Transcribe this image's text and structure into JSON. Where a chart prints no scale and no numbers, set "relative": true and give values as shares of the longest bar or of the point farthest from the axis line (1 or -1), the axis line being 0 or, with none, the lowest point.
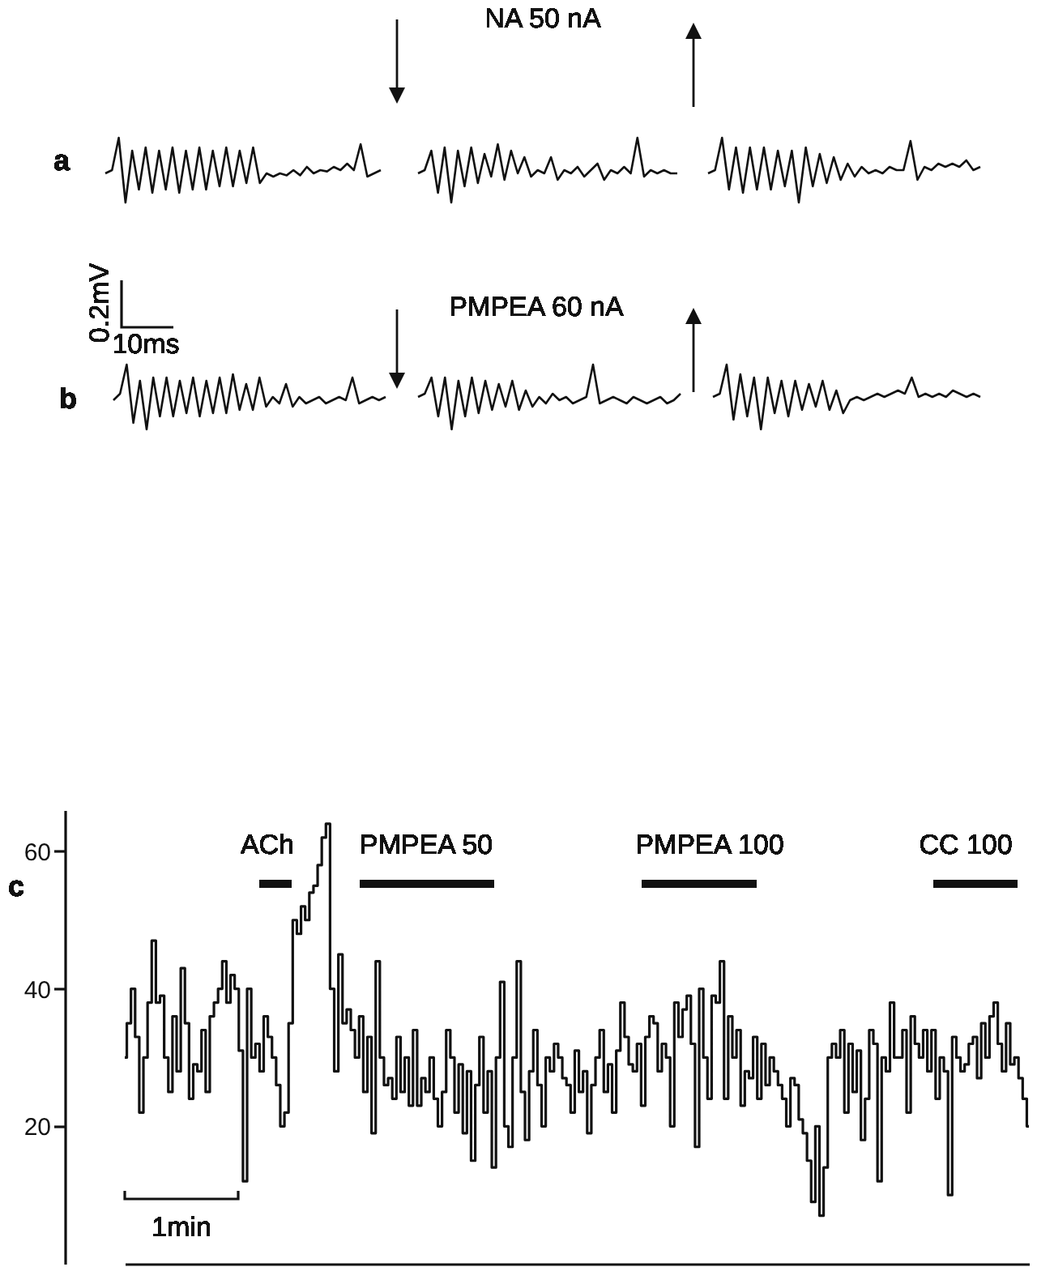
{
  "chart_data": [
    {
      "type": "line",
      "title": "a",
      "relative": true,
      "color": "#111111",
      "categories": [
        null,
        null,
        null,
        null,
        null,
        null,
        null,
        null,
        null,
        null,
        null,
        null,
        null,
        null,
        null,
        null,
        null,
        null,
        null,
        null,
        null,
        null,
        null,
        null,
        null,
        null,
        null,
        null,
        null,
        null,
        null,
        null,
        null,
        null,
        null,
        null,
        null,
        null,
        null,
        null,
        null,
        null
      ],
      "values": [
        0.45,
        0.5,
        1,
        0,
        0.8,
        0.2,
        0.85,
        0.15,
        0.8,
        0.2,
        0.85,
        0.15,
        0.8,
        0.2,
        0.85,
        0.2,
        0.8,
        0.25,
        0.85,
        0.25,
        0.8,
        0.3,
        0.85,
        0.3,
        0.45,
        0.4,
        0.45,
        0.42,
        0.5,
        0.42,
        0.55,
        0.45,
        0.5,
        0.48,
        0.55,
        0.5,
        0.6,
        0.5,
        0.9,
        0.4,
        0.45,
        0.5
      ]
    },
    {
      "type": "line",
      "relative": true,
      "color": "#111111",
      "annotations": [
        "NA  50 nA"
      ],
      "categories": [
        null,
        null,
        null,
        null,
        null,
        null,
        null,
        null,
        null,
        null,
        null,
        null,
        null,
        null,
        null,
        null,
        null,
        null,
        null,
        null,
        null,
        null,
        null,
        null,
        null,
        null,
        null,
        null,
        null,
        null,
        null,
        null,
        null,
        null,
        null,
        null,
        null,
        null,
        null,
        null
      ],
      "values": [
        0.45,
        0.5,
        0.8,
        0.15,
        0.85,
        0,
        0.8,
        0.25,
        0.85,
        0.3,
        0.75,
        0.4,
        0.9,
        0.35,
        0.8,
        0.45,
        0.7,
        0.4,
        0.5,
        0.45,
        0.7,
        0.35,
        0.5,
        0.45,
        0.55,
        0.4,
        0.5,
        0.6,
        0.35,
        0.5,
        0.45,
        0.55,
        0.45,
        1,
        0.4,
        0.5,
        0.45,
        0.5,
        0.45,
        0.45
      ]
    },
    {
      "type": "line",
      "relative": true,
      "color": "#111111",
      "categories": [
        null,
        null,
        null,
        null,
        null,
        null,
        null,
        null,
        null,
        null,
        null,
        null,
        null,
        null,
        null,
        null,
        null,
        null,
        null,
        null,
        null,
        null,
        null,
        null,
        null,
        null,
        null,
        null,
        null,
        null,
        null,
        null,
        null,
        null,
        null,
        null,
        null,
        null,
        null,
        null
      ],
      "values": [
        0.45,
        0.5,
        1,
        0.2,
        0.85,
        0.15,
        0.85,
        0.2,
        0.85,
        0.2,
        0.8,
        0.25,
        0.8,
        0,
        0.85,
        0.25,
        0.75,
        0.3,
        0.7,
        0.35,
        0.6,
        0.4,
        0.55,
        0.45,
        0.5,
        0.45,
        0.55,
        0.5,
        0.5,
        0.95,
        0.35,
        0.55,
        0.5,
        0.6,
        0.55,
        0.6,
        0.55,
        0.65,
        0.5,
        0.55
      ]
    },
    {
      "type": "line",
      "title": "b",
      "relative": true,
      "color": "#111111",
      "annotations": [
        "0.2mV",
        "10ms"
      ],
      "categories": [
        null,
        null,
        null,
        null,
        null,
        null,
        null,
        null,
        null,
        null,
        null,
        null,
        null,
        null,
        null,
        null,
        null,
        null,
        null,
        null,
        null,
        null,
        null,
        null,
        null,
        null,
        null,
        null,
        null,
        null,
        null,
        null,
        null,
        null,
        null,
        null,
        null,
        null,
        null,
        null,
        null,
        null
      ],
      "values": [
        0.45,
        0.55,
        1,
        0.1,
        0.75,
        0,
        0.8,
        0.2,
        0.8,
        0.2,
        0.75,
        0.25,
        0.8,
        0.2,
        0.75,
        0.25,
        0.8,
        0.25,
        0.85,
        0.3,
        0.7,
        0.3,
        0.8,
        0.35,
        0.5,
        0.4,
        0.7,
        0.35,
        0.5,
        0.4,
        0.45,
        0.5,
        0.4,
        0.45,
        0.5,
        0.45,
        0.8,
        0.4,
        0.45,
        0.5,
        0.45,
        0.5
      ]
    },
    {
      "type": "line",
      "relative": true,
      "color": "#111111",
      "annotations": [
        "PMPEA 60 nA"
      ],
      "categories": [
        null,
        null,
        null,
        null,
        null,
        null,
        null,
        null,
        null,
        null,
        null,
        null,
        null,
        null,
        null,
        null,
        null,
        null,
        null,
        null,
        null,
        null,
        null,
        null,
        null,
        null,
        null,
        null,
        null,
        null,
        null,
        null,
        null,
        null,
        null,
        null,
        null,
        null,
        null,
        null
      ],
      "values": [
        0.5,
        0.55,
        0.8,
        0.2,
        0.8,
        0,
        0.75,
        0.2,
        0.8,
        0.25,
        0.75,
        0.3,
        0.7,
        0.35,
        0.75,
        0.3,
        0.6,
        0.35,
        0.5,
        0.4,
        0.55,
        0.45,
        0.5,
        0.4,
        0.45,
        0.5,
        1,
        0.4,
        0.45,
        0.5,
        0.45,
        0.4,
        0.5,
        0.45,
        0.4,
        0.45,
        0.5,
        0.4,
        0.45,
        0.55
      ]
    },
    {
      "type": "line",
      "relative": true,
      "color": "#111111",
      "categories": [
        null,
        null,
        null,
        null,
        null,
        null,
        null,
        null,
        null,
        null,
        null,
        null,
        null,
        null,
        null,
        null,
        null,
        null,
        null,
        null,
        null,
        null,
        null,
        null,
        null,
        null,
        null,
        null,
        null,
        null,
        null,
        null,
        null,
        null,
        null,
        null,
        null,
        null,
        null,
        null
      ],
      "values": [
        0.5,
        0.55,
        1,
        0.15,
        0.85,
        0.2,
        0.8,
        0,
        0.8,
        0.25,
        0.75,
        0.2,
        0.75,
        0.3,
        0.7,
        0.35,
        0.75,
        0.3,
        0.6,
        0.25,
        0.45,
        0.5,
        0.45,
        0.5,
        0.55,
        0.5,
        0.55,
        0.6,
        0.55,
        0.8,
        0.5,
        0.55,
        0.5,
        0.55,
        0.5,
        0.6,
        0.55,
        0.5,
        0.55,
        0.5
      ]
    },
    {
      "type": "step",
      "title": "c",
      "color": "#111111",
      "ylim": [
        0,
        66
      ],
      "yticks": [
        20,
        40,
        60
      ],
      "tick_labels": "y",
      "annotations": [
        "ACh",
        "PMPEA 50",
        "PMPEA 100",
        "CC 100",
        "1min"
      ],
      "categories": [
        null,
        null,
        null,
        null,
        null,
        null,
        null,
        null,
        null,
        null,
        null,
        null,
        null,
        null,
        null,
        null,
        null,
        null,
        null,
        null,
        null,
        null,
        null,
        null,
        null,
        null,
        null,
        null,
        null,
        null,
        null,
        null,
        null,
        null,
        null,
        null,
        null,
        null,
        null,
        null,
        null,
        null,
        null,
        null,
        null,
        null,
        null,
        null,
        null,
        null,
        null,
        null,
        null,
        null,
        null,
        null,
        null,
        null,
        null,
        null,
        null,
        null,
        null,
        null,
        null,
        null,
        null,
        null,
        null,
        null,
        null,
        null,
        null,
        null,
        null,
        null,
        null,
        null,
        null,
        null,
        null,
        null,
        null,
        null,
        null,
        null,
        null,
        null,
        null,
        null,
        null,
        null,
        null,
        null,
        null,
        null,
        null,
        null,
        null,
        null,
        null,
        null,
        null,
        null,
        null,
        null,
        null,
        null,
        null,
        null,
        null,
        null,
        null,
        null,
        null,
        null,
        null,
        null,
        null,
        null,
        null,
        null,
        null,
        null,
        null,
        null,
        null,
        null,
        null,
        null,
        null,
        null,
        null,
        null,
        null,
        null,
        null,
        null,
        null,
        null,
        null,
        null,
        null,
        null,
        null,
        null,
        null,
        null,
        null,
        null,
        null,
        null,
        null,
        null,
        null,
        null,
        null,
        null,
        null,
        null,
        null,
        null,
        null,
        null,
        null,
        null,
        null,
        null,
        null,
        null,
        null,
        null,
        null,
        null,
        null,
        null,
        null,
        null,
        null,
        null,
        null,
        null,
        null,
        null,
        null,
        null,
        null,
        null,
        null,
        null,
        null,
        null,
        null,
        null,
        null,
        null,
        null,
        null,
        null,
        null,
        null,
        null,
        null,
        null,
        null,
        null,
        null,
        null,
        null,
        null,
        null,
        null,
        null,
        null,
        null,
        null,
        null,
        null,
        null
      ],
      "values": [
        30,
        35,
        40,
        33,
        22,
        30,
        38,
        47,
        38,
        39,
        30,
        25,
        36,
        28,
        43,
        35,
        24,
        29,
        28,
        34,
        25,
        36,
        38,
        40,
        44,
        38,
        42,
        40,
        31,
        12,
        40,
        30,
        32,
        28,
        36,
        33,
        30,
        26,
        20,
        22,
        35,
        50,
        48,
        52,
        50,
        54,
        55,
        58,
        62,
        64,
        40,
        28,
        45,
        35,
        37,
        34,
        30,
        36,
        25,
        33,
        19,
        44,
        30,
        26,
        27,
        24,
        33,
        25,
        30,
        23,
        34,
        23,
        27,
        25,
        30,
        24,
        20,
        25,
        34,
        30,
        22,
        29,
        19,
        28,
        15,
        26,
        33,
        22,
        28,
        14,
        30,
        41,
        20,
        17,
        30,
        44,
        25,
        18,
        28,
        34,
        26,
        20,
        30,
        28,
        32,
        30,
        27,
        26,
        22,
        31,
        25,
        28,
        19,
        26,
        30,
        34,
        25,
        29,
        22,
        31,
        38,
        33,
        29,
        28,
        32,
        23,
        33,
        36,
        35,
        28,
        32,
        30,
        20,
        38,
        33,
        37,
        39,
        32,
        17,
        40,
        30,
        24,
        39,
        38,
        44,
        24,
        36,
        30,
        34,
        23,
        28,
        27,
        33,
        24,
        32,
        26,
        30,
        28,
        26,
        24,
        20,
        27,
        26,
        21,
        19,
        15,
        9,
        20,
        7,
        14,
        30,
        32,
        30,
        34,
        22,
        32,
        25,
        31,
        18,
        24,
        34,
        32,
        12,
        30,
        28,
        38,
        30,
        30,
        34,
        22,
        36,
        32,
        30,
        34,
        28,
        34,
        24,
        30,
        28,
        10,
        33,
        30,
        28,
        29,
        32,
        33,
        27,
        35,
        30,
        36,
        38,
        32,
        28,
        35,
        29,
        30,
        27,
        24,
        20
      ]
    }
  ]
}
